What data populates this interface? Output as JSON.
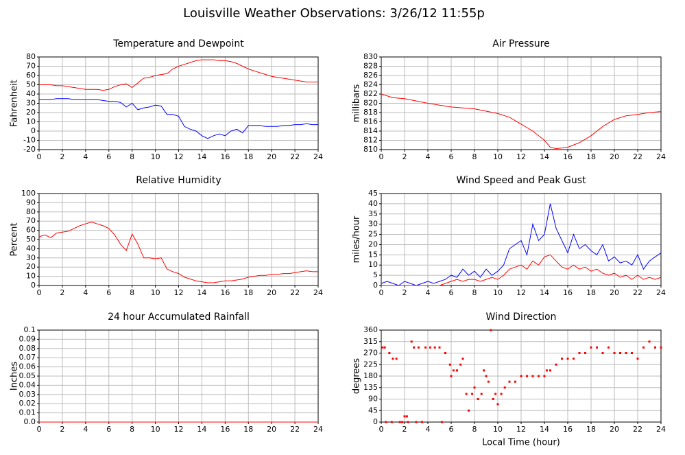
{
  "title": "Louisville Weather Observations: 3/26/12 11:55p",
  "chart_data": [
    {
      "type": "line",
      "title": "Temperature and Dewpoint",
      "ylabel": "Fahrenheit",
      "grid": true,
      "x": [
        0,
        0.5,
        1,
        1.5,
        2,
        2.5,
        3,
        3.5,
        4,
        4.5,
        5,
        5.5,
        6,
        6.5,
        7,
        7.5,
        8,
        8.5,
        9,
        9.5,
        10,
        10.5,
        11,
        11.5,
        12,
        12.5,
        13,
        13.5,
        14,
        14.5,
        15,
        15.5,
        16,
        16.5,
        17,
        17.5,
        18,
        18.5,
        19,
        19.5,
        20,
        20.5,
        21,
        21.5,
        22,
        22.5,
        23,
        23.5,
        24
      ],
      "series": [
        {
          "color": "#ff0000",
          "values": [
            50,
            50,
            50,
            49,
            49,
            48,
            47,
            46,
            45,
            45,
            45,
            44,
            45,
            48,
            50,
            51,
            47,
            52,
            57,
            58,
            60,
            61,
            62,
            67,
            70,
            72,
            74,
            76,
            77,
            77,
            77,
            76,
            76,
            75,
            73,
            70,
            67,
            65,
            63,
            61,
            59,
            58,
            57,
            56,
            55,
            54,
            53,
            53,
            53
          ]
        },
        {
          "color": "#0000ff",
          "values": [
            34,
            34,
            34,
            35,
            35,
            35,
            34,
            34,
            34,
            34,
            34,
            33,
            32,
            32,
            31,
            26,
            30,
            23,
            25,
            26,
            28,
            27,
            18,
            18,
            16,
            5,
            2,
            0,
            -5,
            -8,
            -5,
            -3,
            -5,
            0,
            2,
            -2,
            6,
            6,
            6,
            5,
            5,
            5,
            6,
            6,
            7,
            7,
            8,
            7,
            7
          ]
        }
      ],
      "xlim": [
        0,
        24
      ],
      "xticks": [
        0,
        2,
        4,
        6,
        8,
        10,
        12,
        14,
        16,
        18,
        20,
        22,
        24
      ],
      "ylim": [
        -20,
        80
      ],
      "yticks": [
        -20,
        -10,
        0,
        10,
        20,
        30,
        40,
        50,
        60,
        70,
        80
      ]
    },
    {
      "type": "line",
      "title": "Air Pressure",
      "ylabel": "millibars",
      "grid": true,
      "x": [
        0,
        1,
        2,
        3,
        4,
        5,
        6,
        7,
        8,
        9,
        10,
        11,
        12,
        13,
        14,
        14.5,
        15,
        16,
        17,
        18,
        19,
        20,
        21,
        22,
        23,
        24
      ],
      "series": [
        {
          "color": "#ff0000",
          "values": [
            822,
            821.2,
            821,
            820.5,
            820,
            819.6,
            819.2,
            819,
            818.8,
            818.3,
            817.8,
            817,
            815.5,
            814,
            812,
            810.5,
            810.2,
            810.5,
            811.5,
            813,
            815,
            816.5,
            817.3,
            817.6,
            818,
            818.2
          ]
        }
      ],
      "xlim": [
        0,
        24
      ],
      "xticks": [
        0,
        2,
        4,
        6,
        8,
        10,
        12,
        14,
        16,
        18,
        20,
        22,
        24
      ],
      "ylim": [
        810,
        830
      ],
      "yticks": [
        810,
        812,
        814,
        816,
        818,
        820,
        822,
        824,
        826,
        828,
        830
      ]
    },
    {
      "type": "line",
      "title": "Relative Humidity",
      "ylabel": "Percent",
      "grid": true,
      "x": [
        0,
        0.5,
        1,
        1.5,
        2,
        2.5,
        3,
        3.5,
        4,
        4.5,
        5,
        5.5,
        6,
        6.5,
        7,
        7.5,
        8,
        8.5,
        9,
        9.5,
        10,
        10.5,
        11,
        11.5,
        12,
        12.5,
        13,
        13.5,
        14,
        14.5,
        15,
        15.5,
        16,
        16.5,
        17,
        17.5,
        18,
        18.5,
        19,
        19.5,
        20,
        20.5,
        21,
        21.5,
        22,
        22.5,
        23,
        23.5,
        24
      ],
      "series": [
        {
          "color": "#ff0000",
          "values": [
            53,
            55,
            52,
            57,
            58,
            59,
            62,
            65,
            67,
            69,
            67,
            65,
            62,
            55,
            45,
            38,
            56,
            45,
            30,
            30,
            29,
            30,
            18,
            15,
            13,
            9,
            7,
            5,
            4,
            3,
            3,
            4,
            5,
            5,
            6,
            7,
            9,
            10,
            11,
            11,
            12,
            12,
            13,
            13,
            14,
            15,
            16,
            15,
            15
          ]
        }
      ],
      "xlim": [
        0,
        24
      ],
      "xticks": [
        0,
        2,
        4,
        6,
        8,
        10,
        12,
        14,
        16,
        18,
        20,
        22,
        24
      ],
      "ylim": [
        0,
        100
      ],
      "yticks": [
        0,
        10,
        20,
        30,
        40,
        50,
        60,
        70,
        80,
        90,
        100
      ]
    },
    {
      "type": "line",
      "title": "Wind Speed and Peak Gust",
      "ylabel": "miles/hour",
      "grid": true,
      "x": [
        0,
        0.5,
        1,
        1.5,
        2,
        2.5,
        3,
        3.5,
        4,
        4.5,
        5,
        5.5,
        6,
        6.5,
        7,
        7.5,
        8,
        8.5,
        9,
        9.5,
        10,
        10.5,
        11,
        11.5,
        12,
        12.5,
        13,
        13.5,
        14,
        14.5,
        15,
        15.5,
        16,
        16.5,
        17,
        17.5,
        18,
        18.5,
        19,
        19.5,
        20,
        20.5,
        21,
        21.5,
        22,
        22.5,
        23,
        23.5,
        24
      ],
      "series": [
        {
          "color": "#0000ff",
          "values": [
            1,
            2,
            1,
            0,
            2,
            1,
            0,
            1,
            2,
            1,
            2,
            3,
            5,
            4,
            8,
            5,
            7,
            4,
            8,
            5,
            7,
            10,
            18,
            20,
            22,
            15,
            30,
            22,
            25,
            40,
            28,
            22,
            16,
            25,
            18,
            20,
            17,
            15,
            20,
            12,
            14,
            11,
            12,
            10,
            15,
            8,
            12,
            14,
            16
          ]
        },
        {
          "color": "#ff0000",
          "values": [
            0,
            0,
            0,
            0,
            0,
            0,
            0,
            0,
            0,
            0,
            0,
            1,
            2,
            3,
            2,
            3,
            3,
            2,
            3,
            4,
            3,
            5,
            8,
            9,
            10,
            8,
            12,
            10,
            14,
            15,
            12,
            9,
            8,
            10,
            8,
            9,
            7,
            8,
            6,
            5,
            6,
            4,
            5,
            3,
            5,
            3,
            4,
            3,
            4
          ]
        }
      ],
      "xlim": [
        0,
        24
      ],
      "xticks": [
        0,
        2,
        4,
        6,
        8,
        10,
        12,
        14,
        16,
        18,
        20,
        22,
        24
      ],
      "ylim": [
        0,
        45
      ],
      "yticks": [
        0,
        5,
        10,
        15,
        20,
        25,
        30,
        35,
        40,
        45
      ]
    },
    {
      "type": "line",
      "title": "24 hour Accumulated Rainfall",
      "ylabel": "Inches",
      "grid": true,
      "x": [
        0,
        24
      ],
      "series": [
        {
          "color": "#ff0000",
          "values": [
            0,
            0
          ]
        }
      ],
      "xlim": [
        0,
        24
      ],
      "xticks": [
        0,
        2,
        4,
        6,
        8,
        10,
        12,
        14,
        16,
        18,
        20,
        22,
        24
      ],
      "ylim": [
        0,
        0.1
      ],
      "yticks": [
        {
          "value": 0,
          "label": "0.0"
        },
        0.01,
        0.02,
        0.03,
        0.04,
        0.05,
        0.06,
        0.07,
        0.08,
        0.09,
        0.1
      ]
    },
    {
      "type": "scatter",
      "title": "Wind Direction",
      "ylabel": "degrees",
      "xlabel": "Local Time (hour)",
      "grid": true,
      "x": [
        0.1,
        0.3,
        0.4,
        0.7,
        0.9,
        1,
        1.3,
        1.6,
        1.8,
        2,
        2.2,
        2.3,
        2.6,
        2.8,
        3,
        3.2,
        3.5,
        3.8,
        4.2,
        4.6,
        5,
        5.2,
        5.5,
        5.9,
        6,
        6.2,
        6.5,
        6.8,
        7,
        7.3,
        7.5,
        7.8,
        8,
        8.3,
        8.6,
        8.8,
        9,
        9.2,
        9.4,
        9.6,
        9.8,
        10,
        10.3,
        10.6,
        11,
        11.5,
        12,
        12.5,
        13,
        13.5,
        14,
        14.2,
        14.5,
        15,
        15.5,
        16,
        16.5,
        17,
        17.5,
        18,
        18.5,
        19,
        19.5,
        20,
        20.5,
        21,
        21.5,
        22,
        22.5,
        23,
        23.5,
        24
      ],
      "series": [
        {
          "color": "#ff0000",
          "values": [
            292,
            292,
            0,
            270,
            0,
            248,
            248,
            0,
            0,
            22,
            22,
            0,
            315,
            292,
            0,
            292,
            0,
            292,
            292,
            292,
            292,
            0,
            270,
            225,
            180,
            202,
            202,
            225,
            248,
            110,
            45,
            110,
            135,
            90,
            110,
            202,
            180,
            158,
            360,
            90,
            110,
            70,
            110,
            135,
            158,
            158,
            180,
            180,
            180,
            180,
            180,
            202,
            202,
            225,
            248,
            248,
            248,
            270,
            270,
            292,
            292,
            270,
            292,
            270,
            270,
            270,
            270,
            248,
            292,
            315,
            292,
            292
          ]
        }
      ],
      "xlim": [
        0,
        24
      ],
      "xticks": [
        0,
        2,
        4,
        6,
        8,
        10,
        12,
        14,
        16,
        18,
        20,
        22,
        24
      ],
      "ylim": [
        0,
        360
      ],
      "yticks": [
        0,
        45,
        90,
        135,
        180,
        225,
        270,
        315,
        360
      ]
    }
  ]
}
